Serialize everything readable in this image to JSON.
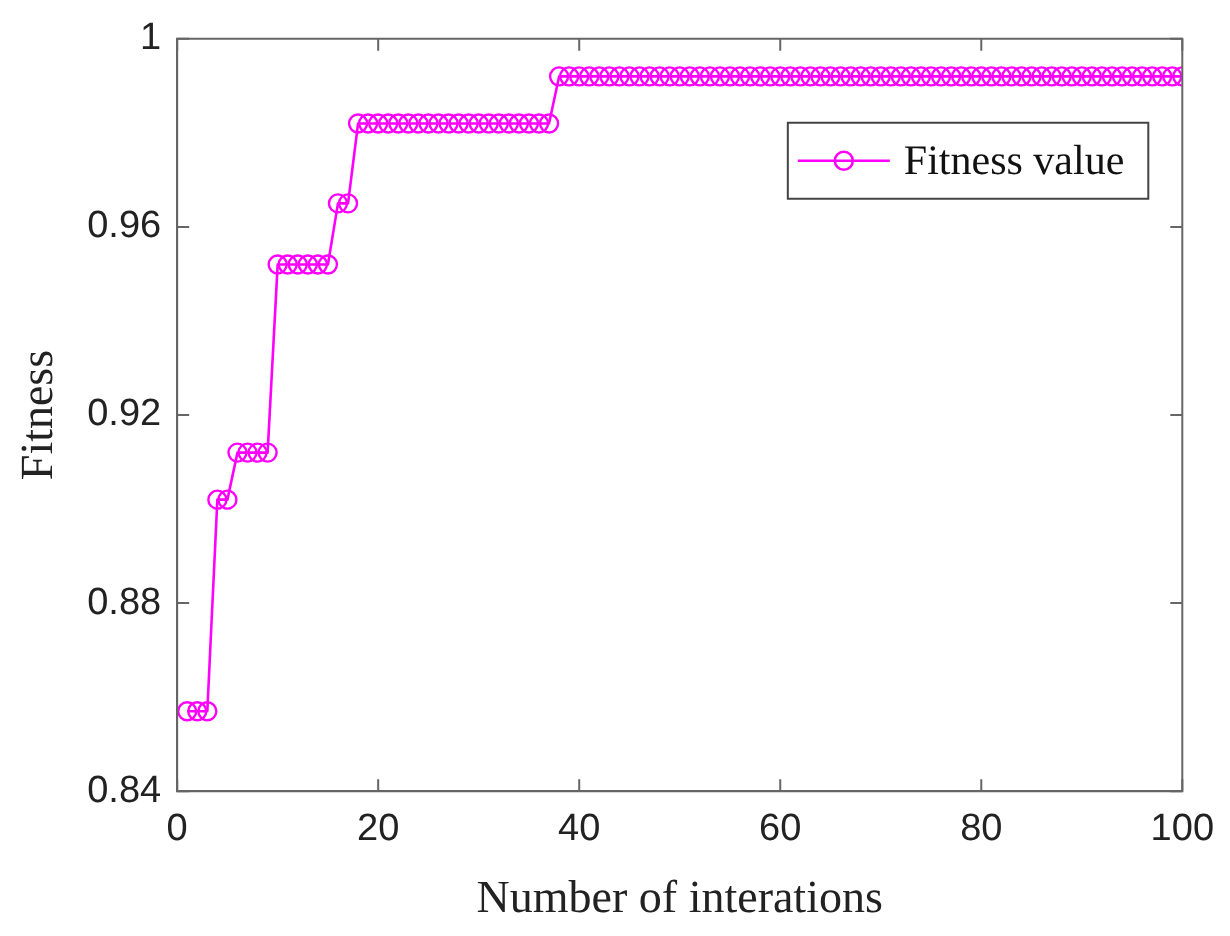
{
  "chart_data": {
    "type": "line",
    "xlabel": "Number of interations",
    "ylabel": "Fitness",
    "x": [
      1,
      2,
      3,
      4,
      5,
      6,
      7,
      8,
      9,
      10,
      11,
      12,
      13,
      14,
      15,
      16,
      17,
      18,
      19,
      20,
      21,
      22,
      23,
      24,
      25,
      26,
      27,
      28,
      29,
      30,
      31,
      32,
      33,
      34,
      35,
      36,
      37,
      38,
      39,
      40,
      41,
      42,
      43,
      44,
      45,
      46,
      47,
      48,
      49,
      50,
      51,
      52,
      53,
      54,
      55,
      56,
      57,
      58,
      59,
      60,
      61,
      62,
      63,
      64,
      65,
      66,
      67,
      68,
      69,
      70,
      71,
      72,
      73,
      74,
      75,
      76,
      77,
      78,
      79,
      80,
      81,
      82,
      83,
      84,
      85,
      86,
      87,
      88,
      89,
      90,
      91,
      92,
      93,
      94,
      95,
      96,
      97,
      98,
      99,
      100
    ],
    "series": [
      {
        "name": "Fitness value",
        "color": "#ff00ff",
        "values": [
          0.857,
          0.857,
          0.857,
          0.902,
          0.902,
          0.912,
          0.912,
          0.912,
          0.912,
          0.952,
          0.952,
          0.952,
          0.952,
          0.952,
          0.952,
          0.965,
          0.965,
          0.982,
          0.982,
          0.982,
          0.982,
          0.982,
          0.982,
          0.982,
          0.982,
          0.982,
          0.982,
          0.982,
          0.982,
          0.982,
          0.982,
          0.982,
          0.982,
          0.982,
          0.982,
          0.982,
          0.982,
          0.992,
          0.992,
          0.992,
          0.992,
          0.992,
          0.992,
          0.992,
          0.992,
          0.992,
          0.992,
          0.992,
          0.992,
          0.992,
          0.992,
          0.992,
          0.992,
          0.992,
          0.992,
          0.992,
          0.992,
          0.992,
          0.992,
          0.992,
          0.992,
          0.992,
          0.992,
          0.992,
          0.992,
          0.992,
          0.992,
          0.992,
          0.992,
          0.992,
          0.992,
          0.992,
          0.992,
          0.992,
          0.992,
          0.992,
          0.992,
          0.992,
          0.992,
          0.992,
          0.992,
          0.992,
          0.992,
          0.992,
          0.992,
          0.992,
          0.992,
          0.992,
          0.992,
          0.992,
          0.992,
          0.992,
          0.992,
          0.992,
          0.992,
          0.992,
          0.992,
          0.992,
          0.992,
          0.992
        ]
      }
    ],
    "xlim": [
      0,
      100
    ],
    "xticks": [
      0,
      20,
      40,
      60,
      80,
      100
    ],
    "ylim": [
      0.84,
      1
    ],
    "yticks": [
      0.84,
      0.88,
      0.92,
      0.96,
      1
    ],
    "grid": false,
    "legend": "top right",
    "marker": "circle",
    "line_style": "solid"
  }
}
